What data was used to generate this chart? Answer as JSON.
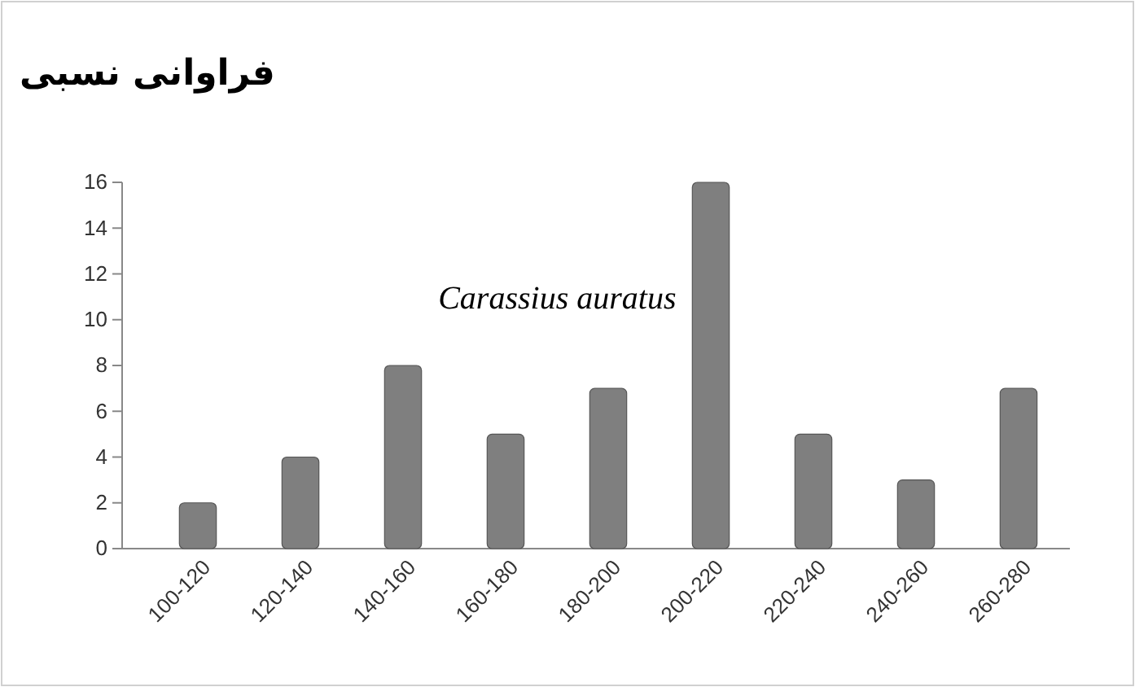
{
  "chart_data": {
    "type": "bar",
    "title": "فراوانی نسبی",
    "categories": [
      "100-120",
      "120-140",
      "140-160",
      "160-180",
      "180-200",
      "200-220",
      "220-240",
      "240-260",
      "260-280"
    ],
    "values": [
      2,
      4,
      8,
      5,
      7,
      16,
      5,
      3,
      7
    ],
    "color": "#7f7f7f",
    "ylim": [
      0,
      16
    ],
    "yticks": [
      0,
      2,
      4,
      6,
      8,
      10,
      12,
      14,
      16
    ],
    "grid": false,
    "annotations": [
      "Carassius auratus"
    ]
  }
}
